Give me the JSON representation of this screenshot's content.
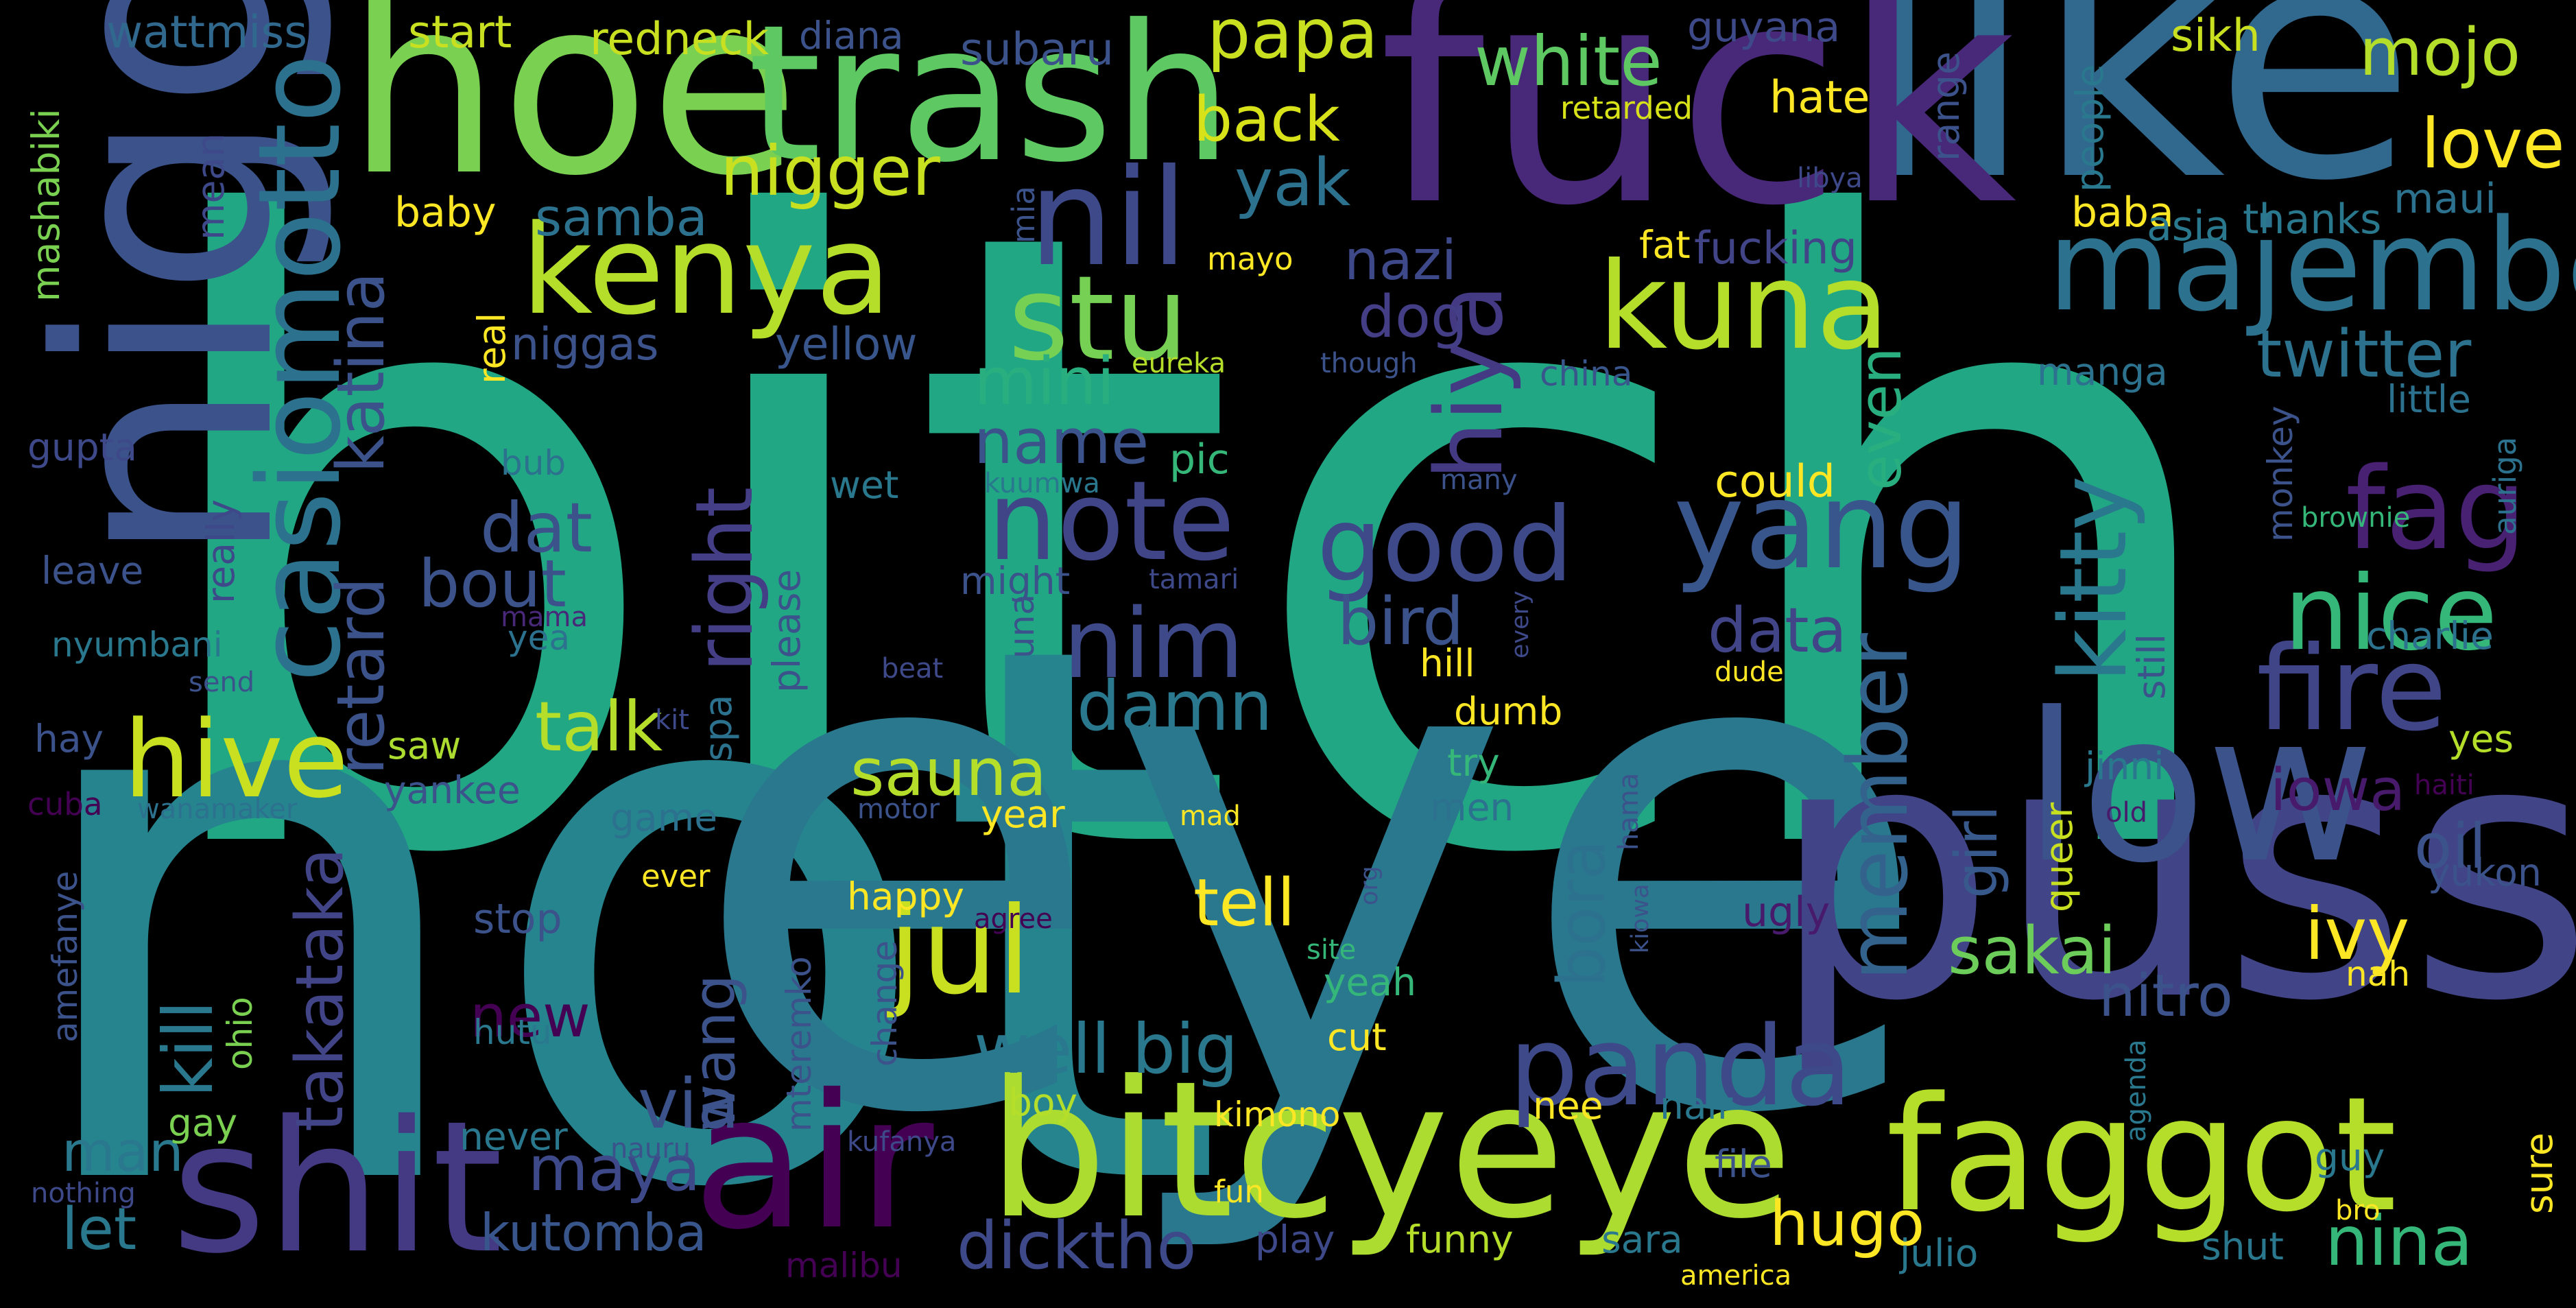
{
  "words": [
    {
      "text": "bitch",
      "color": "#21a784"
    },
    {
      "text": "not",
      "color": "#25848e"
    },
    {
      "text": "eye",
      "color": "#2a788e"
    },
    {
      "text": "pussy",
      "color": "#414487"
    },
    {
      "text": "like",
      "color": "#31688e"
    },
    {
      "text": "fuck",
      "color": "#482878"
    },
    {
      "text": "hoe",
      "color": "#7ad151"
    },
    {
      "text": "trash",
      "color": "#5ec962"
    },
    {
      "text": "nigga",
      "color": "#3b528b"
    },
    {
      "text": "low",
      "color": "#3b528b"
    },
    {
      "text": "bitcyeye",
      "color": "#addc30"
    },
    {
      "text": "air",
      "color": "#440154"
    },
    {
      "text": "shit",
      "color": "#443983"
    },
    {
      "text": "faggot",
      "color": "#b5de2b"
    },
    {
      "text": "majembe",
      "color": "#2c728e"
    },
    {
      "text": "kenya",
      "color": "#b5de2b"
    },
    {
      "text": "kuna",
      "color": "#b5de2b"
    },
    {
      "text": "nil",
      "color": "#3e4989"
    },
    {
      "text": "casiomotto",
      "color": "#2c728e"
    },
    {
      "text": "yang",
      "color": "#39568c"
    },
    {
      "text": "jul",
      "color": "#c8e020"
    },
    {
      "text": "stu",
      "color": "#75d054"
    },
    {
      "text": "note",
      "color": "#404588"
    },
    {
      "text": "panda",
      "color": "#3e4989"
    },
    {
      "text": "fire",
      "color": "#404588"
    },
    {
      "text": "fag",
      "color": "#482173"
    },
    {
      "text": "hive",
      "color": "#c8e020"
    },
    {
      "text": "nice",
      "color": "#35b779"
    },
    {
      "text": "good",
      "color": "#3e4989"
    },
    {
      "text": "nim",
      "color": "#3e4989"
    },
    {
      "text": "kitty",
      "color": "#2a788e"
    },
    {
      "text": "hiya",
      "color": "#443a83"
    },
    {
      "text": "right",
      "color": "#433e85"
    },
    {
      "text": "member",
      "color": "#33638d"
    },
    {
      "text": "papa",
      "color": "#c8e020"
    },
    {
      "text": "white",
      "color": "#5ec962"
    },
    {
      "text": "mojo",
      "color": "#b5de2b"
    },
    {
      "text": "love",
      "color": "#fde725"
    },
    {
      "text": "nigger",
      "color": "#c8e020"
    },
    {
      "text": "back",
      "color": "#d8e219"
    },
    {
      "text": "yak",
      "color": "#2c728e"
    },
    {
      "text": "twitter",
      "color": "#2c728e"
    },
    {
      "text": "mini",
      "color": "#29af7f"
    },
    {
      "text": "name",
      "color": "#3b528b"
    },
    {
      "text": "dat",
      "color": "#3b528b"
    },
    {
      "text": "bout",
      "color": "#3b528b"
    },
    {
      "text": "talk",
      "color": "#b5de2b"
    },
    {
      "text": "retard",
      "color": "#3b528b"
    },
    {
      "text": "katina",
      "color": "#3b528b"
    },
    {
      "text": "takataka",
      "color": "#414487"
    },
    {
      "text": "kill",
      "color": "#2a788e"
    },
    {
      "text": "sauna",
      "color": "#b5de2b"
    },
    {
      "text": "damn",
      "color": "#2a788e"
    },
    {
      "text": "data",
      "color": "#414487"
    },
    {
      "text": "bird",
      "color": "#3b528b"
    },
    {
      "text": "tell",
      "color": "#fde725"
    },
    {
      "text": "well big",
      "color": "#2a788e"
    },
    {
      "text": "via",
      "color": "#3b528b"
    },
    {
      "text": "maya",
      "color": "#3e4989"
    },
    {
      "text": "dicktho",
      "color": "#3e4989"
    },
    {
      "text": "hugo",
      "color": "#fde725"
    },
    {
      "text": "nina",
      "color": "#35b779"
    },
    {
      "text": "sakai",
      "color": "#6ccd5a"
    },
    {
      "text": "nitro",
      "color": "#3b528b"
    },
    {
      "text": "ivy",
      "color": "#fde725"
    },
    {
      "text": "iowa",
      "color": "#481a6c"
    },
    {
      "text": "oil",
      "color": "#3b528b"
    },
    {
      "text": "girl",
      "color": "#38598c"
    },
    {
      "text": "even",
      "color": "#29af7f"
    },
    {
      "text": "bora",
      "color": "#2c728e"
    },
    {
      "text": "wang",
      "color": "#3b528b"
    },
    {
      "text": "new",
      "color": "#440154"
    },
    {
      "text": "man",
      "color": "#2a788e"
    },
    {
      "text": "let",
      "color": "#2a788e"
    },
    {
      "text": "kutomba",
      "color": "#39568c"
    },
    {
      "text": "samba",
      "color": "#2c728e"
    },
    {
      "text": "nazi",
      "color": "#3e4989"
    },
    {
      "text": "dog",
      "color": "#433e85"
    },
    {
      "text": "yellow",
      "color": "#39568c"
    },
    {
      "text": "niggas",
      "color": "#3b528b"
    },
    {
      "text": "baby",
      "color": "#fde725"
    },
    {
      "text": "mashabiki",
      "color": "#7ad151"
    },
    {
      "text": "mean",
      "color": "#3e4989"
    },
    {
      "text": "wattmiss",
      "color": "#31688e"
    },
    {
      "text": "start",
      "color": "#c8e020"
    },
    {
      "text": "redneck",
      "color": "#c8e020"
    },
    {
      "text": "diana",
      "color": "#3b528b"
    },
    {
      "text": "subaru",
      "color": "#3b528b"
    },
    {
      "text": "guyana",
      "color": "#3e4989"
    },
    {
      "text": "hate",
      "color": "#fde725"
    },
    {
      "text": "retarded",
      "color": "#d8e219"
    },
    {
      "text": "sikh",
      "color": "#c8e020"
    },
    {
      "text": "range",
      "color": "#3b528b"
    },
    {
      "text": "people",
      "color": "#2a788e"
    },
    {
      "text": "libya",
      "color": "#3e4989"
    },
    {
      "text": "baba",
      "color": "#fde725"
    },
    {
      "text": "asia",
      "color": "#2a788e"
    },
    {
      "text": "thanks",
      "color": "#2a788e"
    },
    {
      "text": "maui",
      "color": "#2c728e"
    },
    {
      "text": "mia",
      "color": "#3b528b"
    },
    {
      "text": "mayo",
      "color": "#fde725"
    },
    {
      "text": "real",
      "color": "#fde725"
    },
    {
      "text": "fat",
      "color": "#fde725"
    },
    {
      "text": "fucking",
      "color": "#414487"
    },
    {
      "text": "manga",
      "color": "#2c728e"
    },
    {
      "text": "little",
      "color": "#2c728e"
    },
    {
      "text": "auriga",
      "color": "#2c728e"
    },
    {
      "text": "eureka",
      "color": "#b5de2b"
    },
    {
      "text": "though",
      "color": "#3b528b"
    },
    {
      "text": "china",
      "color": "#39568c"
    },
    {
      "text": "could",
      "color": "#fde725"
    },
    {
      "text": "gupta",
      "color": "#3e4989"
    },
    {
      "text": "bub",
      "color": "#2c728e"
    },
    {
      "text": "wet",
      "color": "#2a788e"
    },
    {
      "text": "kuumwa",
      "color": "#2a788e"
    },
    {
      "text": "pic",
      "color": "#35b779"
    },
    {
      "text": "many",
      "color": "#3b528b"
    },
    {
      "text": "monkey",
      "color": "#3b528b"
    },
    {
      "text": "brownie",
      "color": "#35b779"
    },
    {
      "text": "leave",
      "color": "#3b528b"
    },
    {
      "text": "really",
      "color": "#3e4989"
    },
    {
      "text": "nyumbani",
      "color": "#2a788e"
    },
    {
      "text": "mama",
      "color": "#482878"
    },
    {
      "text": "yea",
      "color": "#2c728e"
    },
    {
      "text": "please",
      "color": "#3b528b"
    },
    {
      "text": "might",
      "color": "#3b528b"
    },
    {
      "text": "tamari",
      "color": "#3e4989"
    },
    {
      "text": "una",
      "color": "#3b528b"
    },
    {
      "text": "every",
      "color": "#3e4989"
    },
    {
      "text": "still",
      "color": "#3b528b"
    },
    {
      "text": "charlie",
      "color": "#2c728e"
    },
    {
      "text": "hill",
      "color": "#fde725"
    },
    {
      "text": "dumb",
      "color": "#fde725"
    },
    {
      "text": "dude",
      "color": "#fde725"
    },
    {
      "text": "send",
      "color": "#3b528b"
    },
    {
      "text": "beat",
      "color": "#3e4989"
    },
    {
      "text": "kit",
      "color": "#3e4989"
    },
    {
      "text": "spa",
      "color": "#2c728e"
    },
    {
      "text": "hay",
      "color": "#3b528b"
    },
    {
      "text": "saw",
      "color": "#addc30"
    },
    {
      "text": "yankee",
      "color": "#3b528b"
    },
    {
      "text": "game",
      "color": "#2c728e"
    },
    {
      "text": "cuba",
      "color": "#440154"
    },
    {
      "text": "wanamaker",
      "color": "#2c728e"
    },
    {
      "text": "motor",
      "color": "#3b528b"
    },
    {
      "text": "year",
      "color": "#fde725"
    },
    {
      "text": "mad",
      "color": "#fde725"
    },
    {
      "text": "try",
      "color": "#35b779"
    },
    {
      "text": "men",
      "color": "#2c728e"
    },
    {
      "text": "jinni",
      "color": "#2a788e"
    },
    {
      "text": "yes",
      "color": "#b5de2b"
    },
    {
      "text": "haiti",
      "color": "#440154"
    },
    {
      "text": "old",
      "color": "#481a6c"
    },
    {
      "text": "hama",
      "color": "#3b528b"
    },
    {
      "text": "yukon",
      "color": "#3b528b"
    },
    {
      "text": "queer",
      "color": "#c8e020"
    },
    {
      "text": "ever",
      "color": "#fde725"
    },
    {
      "text": "happy",
      "color": "#fde725"
    },
    {
      "text": "agree",
      "color": "#440154"
    },
    {
      "text": "org",
      "color": "#3b528b"
    },
    {
      "text": "ugly",
      "color": "#481a6c"
    },
    {
      "text": "amefanye",
      "color": "#3b528b"
    },
    {
      "text": "stop",
      "color": "#3b528b"
    },
    {
      "text": "mteremko",
      "color": "#3b528b"
    },
    {
      "text": "change",
      "color": "#3b528b"
    },
    {
      "text": "yeah",
      "color": "#35b779"
    },
    {
      "text": "site",
      "color": "#35b779"
    },
    {
      "text": "kiowa",
      "color": "#3b528b"
    },
    {
      "text": "nah",
      "color": "#fde725"
    },
    {
      "text": "ohio",
      "color": "#7ad151"
    },
    {
      "text": "hutu",
      "color": "#2a788e"
    },
    {
      "text": "cut",
      "color": "#fde725"
    },
    {
      "text": "gay",
      "color": "#7ad151"
    },
    {
      "text": "boy",
      "color": "#b5de2b"
    },
    {
      "text": "kimono",
      "color": "#fde725"
    },
    {
      "text": "nee",
      "color": "#fde725"
    },
    {
      "text": "nair",
      "color": "#2a788e"
    },
    {
      "text": "agenda",
      "color": "#2a788e"
    },
    {
      "text": "guy",
      "color": "#2a788e"
    },
    {
      "text": "sure",
      "color": "#fde725"
    },
    {
      "text": "never",
      "color": "#2a788e"
    },
    {
      "text": "nauru",
      "color": "#3b528b"
    },
    {
      "text": "kufanya",
      "color": "#3e4989"
    },
    {
      "text": "nothing",
      "color": "#3e4989"
    },
    {
      "text": "fun",
      "color": "#fde725"
    },
    {
      "text": "file",
      "color": "#3b528b"
    },
    {
      "text": "bro",
      "color": "#fde725"
    },
    {
      "text": "play",
      "color": "#3e4989"
    },
    {
      "text": "funny",
      "color": "#b5de2b"
    },
    {
      "text": "sara",
      "color": "#2a788e"
    },
    {
      "text": "julio",
      "color": "#2a788e"
    },
    {
      "text": "shut",
      "color": "#2a788e"
    },
    {
      "text": "malibu",
      "color": "#440154"
    },
    {
      "text": "america",
      "color": "#fde725"
    }
  ]
}
